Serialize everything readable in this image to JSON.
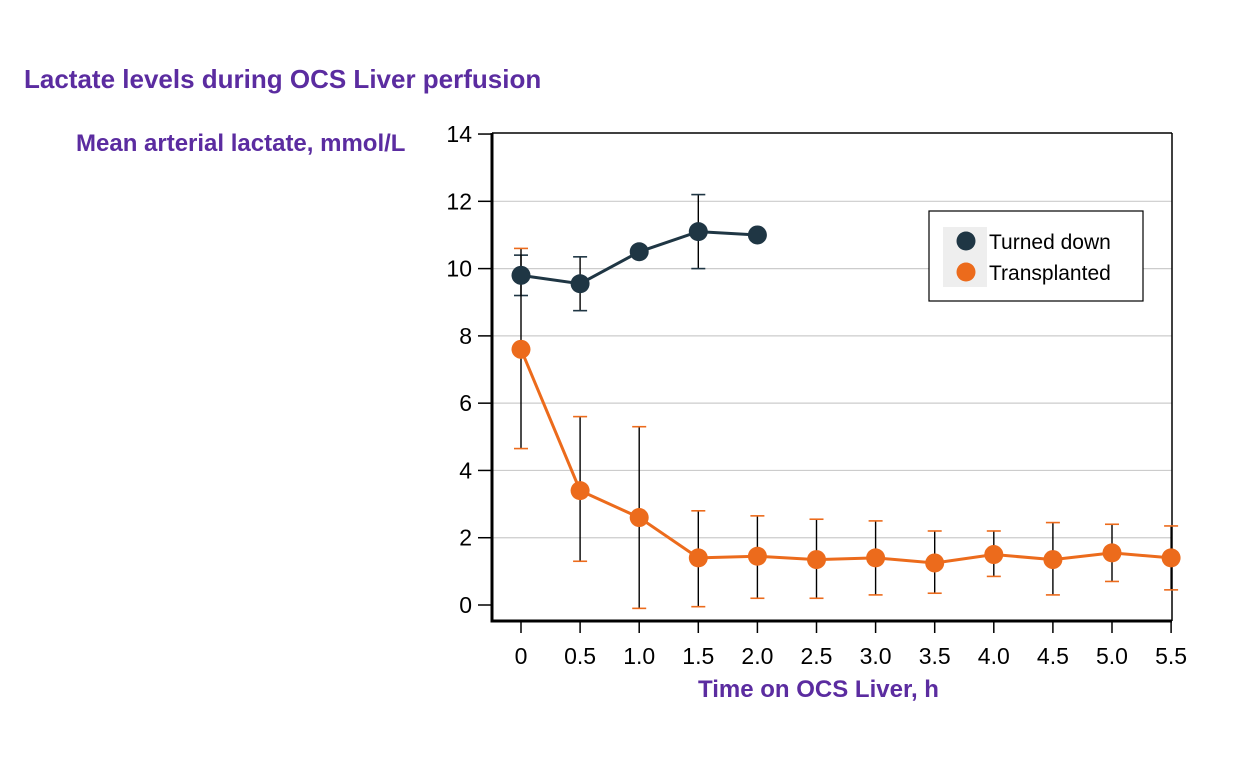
{
  "chart_data": {
    "type": "line",
    "title": "Lactate levels during OCS Liver perfusion",
    "ylabel": "Mean arterial lactate, mmol/L",
    "xlabel": "Time on OCS Liver, h",
    "ylim": [
      0,
      14
    ],
    "xlim": [
      0,
      5.5
    ],
    "x_ticks": [
      "0",
      "0.5",
      "1.0",
      "1.5",
      "2.0",
      "2.5",
      "3.0",
      "3.5",
      "4.0",
      "4.5",
      "5.0",
      "5.5"
    ],
    "y_ticks": [
      "0",
      "2",
      "4",
      "6",
      "8",
      "10",
      "12",
      "14"
    ],
    "grid": "horizontal",
    "legend_position": "top-right",
    "series": [
      {
        "name": "Turned down",
        "color": "#1f3644",
        "x": [
          0,
          0.5,
          1.0,
          1.5,
          2.0
        ],
        "y": [
          9.8,
          9.55,
          10.5,
          11.1,
          11.0
        ],
        "err_low": [
          9.2,
          8.75,
          null,
          10.0,
          null
        ],
        "err_high": [
          10.4,
          10.35,
          null,
          12.2,
          null
        ]
      },
      {
        "name": "Transplanted",
        "color": "#ec6b1c",
        "x": [
          0,
          0.5,
          1.0,
          1.5,
          2.0,
          2.5,
          3.0,
          3.5,
          4.0,
          4.5,
          5.0,
          5.5
        ],
        "y": [
          7.6,
          3.4,
          2.6,
          1.4,
          1.45,
          1.35,
          1.4,
          1.25,
          1.5,
          1.35,
          1.55,
          1.4
        ],
        "err_low": [
          4.65,
          1.3,
          -0.1,
          -0.05,
          0.2,
          0.2,
          0.3,
          0.35,
          0.85,
          0.3,
          0.7,
          0.45
        ],
        "err_high": [
          10.6,
          5.6,
          5.3,
          2.8,
          2.65,
          2.55,
          2.5,
          2.2,
          2.2,
          2.45,
          2.4,
          2.35
        ]
      }
    ]
  }
}
